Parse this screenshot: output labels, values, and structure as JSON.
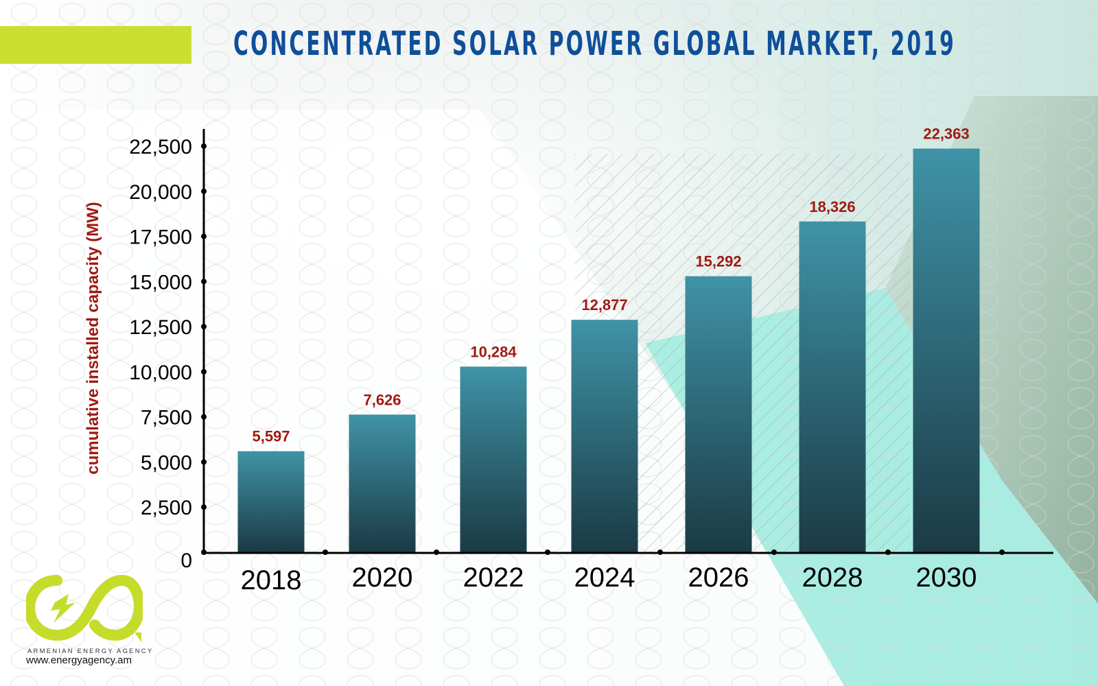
{
  "header": {
    "title": "CONCENTRATED SOLAR POWER GLOBAL MARKET, 2019"
  },
  "branding": {
    "organization": "ARMENIAN ENERGY AGENCY",
    "website": "www.energyagency.am",
    "logo_icon": "infinity-lightning-logo-icon"
  },
  "colors": {
    "title": "#0f4f9a",
    "accent": "#cbdf31",
    "bar_top": "#3f93a6",
    "bar_bottom": "#1b3a45",
    "value_label": "#a01a12",
    "axis_label": "#a01a12",
    "axis": "#000000",
    "teal_band": "#a7ece0",
    "sage_band": "#8fae97"
  },
  "chart_data": {
    "type": "bar",
    "title": "CONCENTRATED SOLAR POWER GLOBAL MARKET, 2019",
    "xlabel": "",
    "ylabel": "cumulative installed capacity (MW)",
    "categories": [
      "2018",
      "2020",
      "2022",
      "2024",
      "2026",
      "2028",
      "2030"
    ],
    "values": [
      5597,
      7626,
      10284,
      12877,
      15292,
      18326,
      22363
    ],
    "value_labels": [
      "5,597",
      "7,626",
      "10,284",
      "12,877",
      "15,292",
      "18,326",
      "22,363"
    ],
    "ylim": [
      0,
      22500
    ],
    "yticks": [
      0,
      2500,
      5000,
      7500,
      10000,
      12500,
      15000,
      17500,
      20000,
      22500
    ],
    "ytick_labels": [
      "0",
      "2,500",
      "5,000",
      "7,500",
      "10,000",
      "12,500",
      "15,000",
      "17,500",
      "20,000",
      "22,500"
    ],
    "grid": false,
    "legend": "none",
    "forecast_region": "hatched from 2024 to 2030"
  }
}
